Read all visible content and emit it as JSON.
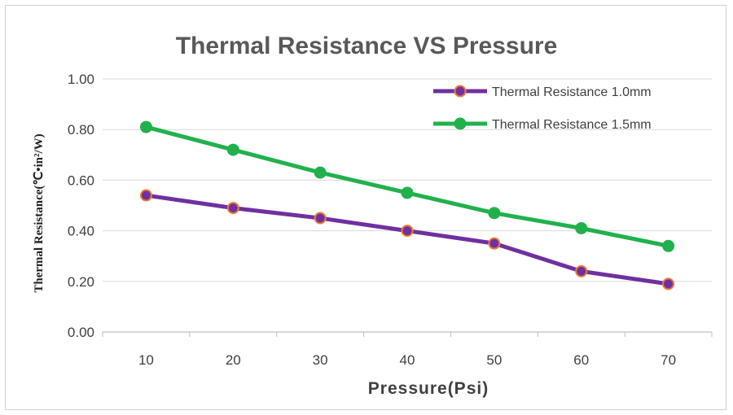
{
  "chart_data": {
    "type": "line",
    "title": "Thermal Resistance VS Pressure",
    "xlabel": "Pressure(Psi)",
    "ylabel": "Thermal Resistance(℃•in²/W)",
    "categories": [
      "10",
      "20",
      "30",
      "40",
      "50",
      "60",
      "70"
    ],
    "ylim": [
      0,
      1.0
    ],
    "yticks": [
      "0.00",
      "0.20",
      "0.40",
      "0.60",
      "0.80",
      "1.00"
    ],
    "grid": true,
    "legend_position": "top-right",
    "series": [
      {
        "name": "Thermal Resistance 1.0mm",
        "values": [
          0.54,
          0.49,
          0.45,
          0.4,
          0.35,
          0.24,
          0.19
        ],
        "color": "#7030a0",
        "marker_edge": "#ed7d31"
      },
      {
        "name": "Thermal Resistance 1.5mm",
        "values": [
          0.81,
          0.72,
          0.63,
          0.55,
          0.47,
          0.41,
          0.34
        ],
        "color": "#21b14c",
        "marker_edge": "#21b14c"
      }
    ]
  }
}
